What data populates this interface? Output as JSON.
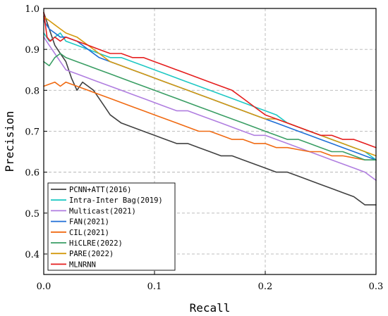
{
  "chart_data": {
    "type": "line",
    "title": "",
    "xlabel": "Recall",
    "ylabel": "Precision",
    "xlim": [
      0.0,
      0.3
    ],
    "ylim": [
      0.35,
      1.0
    ],
    "xticks": [
      0.0,
      0.1,
      0.2,
      0.3
    ],
    "xtick_labels": [
      "0.0",
      "0.1",
      "0.2",
      "0.3"
    ],
    "yticks": [
      0.4,
      0.5,
      0.6,
      0.7,
      0.8,
      0.9,
      1.0
    ],
    "ytick_labels": [
      "0.4",
      "0.5",
      "0.6",
      "0.7",
      "0.8",
      "0.9",
      "1.0"
    ],
    "grid": true,
    "legend_position": "bottom-left",
    "series": [
      {
        "name": "PCNN+ATT(2016)",
        "color": "#404040",
        "x": [
          0.0,
          0.005,
          0.01,
          0.015,
          0.02,
          0.025,
          0.03,
          0.035,
          0.04,
          0.045,
          0.05,
          0.055,
          0.06,
          0.07,
          0.08,
          0.09,
          0.1,
          0.11,
          0.12,
          0.13,
          0.14,
          0.15,
          0.16,
          0.17,
          0.18,
          0.19,
          0.2,
          0.21,
          0.22,
          0.23,
          0.24,
          0.25,
          0.26,
          0.27,
          0.28,
          0.29,
          0.3
        ],
        "y": [
          0.99,
          0.95,
          0.91,
          0.89,
          0.87,
          0.83,
          0.8,
          0.82,
          0.81,
          0.8,
          0.78,
          0.76,
          0.74,
          0.72,
          0.71,
          0.7,
          0.69,
          0.68,
          0.67,
          0.67,
          0.66,
          0.65,
          0.64,
          0.64,
          0.63,
          0.62,
          0.61,
          0.6,
          0.6,
          0.59,
          0.58,
          0.57,
          0.56,
          0.55,
          0.54,
          0.52,
          0.52
        ]
      },
      {
        "name": "Intra-Inter Bag(2019)",
        "color": "#1fc8c4",
        "x": [
          0.0,
          0.005,
          0.01,
          0.015,
          0.02,
          0.03,
          0.04,
          0.05,
          0.06,
          0.07,
          0.08,
          0.09,
          0.1,
          0.11,
          0.12,
          0.13,
          0.14,
          0.15,
          0.16,
          0.17,
          0.18,
          0.19,
          0.2,
          0.21,
          0.22,
          0.23,
          0.24,
          0.25,
          0.26,
          0.27,
          0.28,
          0.29,
          0.3
        ],
        "y": [
          0.94,
          0.92,
          0.93,
          0.94,
          0.92,
          0.91,
          0.9,
          0.89,
          0.88,
          0.88,
          0.87,
          0.86,
          0.85,
          0.84,
          0.83,
          0.82,
          0.81,
          0.8,
          0.79,
          0.78,
          0.77,
          0.76,
          0.75,
          0.74,
          0.72,
          0.71,
          0.7,
          0.69,
          0.68,
          0.67,
          0.66,
          0.65,
          0.63
        ]
      },
      {
        "name": "Multicast(2021)",
        "color": "#b07ee0",
        "x": [
          0.0,
          0.005,
          0.01,
          0.015,
          0.02,
          0.03,
          0.04,
          0.05,
          0.06,
          0.07,
          0.08,
          0.09,
          0.1,
          0.11,
          0.12,
          0.13,
          0.14,
          0.15,
          0.16,
          0.17,
          0.18,
          0.19,
          0.2,
          0.21,
          0.22,
          0.23,
          0.24,
          0.25,
          0.26,
          0.27,
          0.28,
          0.29,
          0.3
        ],
        "y": [
          0.93,
          0.91,
          0.89,
          0.87,
          0.85,
          0.84,
          0.83,
          0.82,
          0.81,
          0.8,
          0.79,
          0.78,
          0.77,
          0.76,
          0.75,
          0.75,
          0.74,
          0.73,
          0.72,
          0.71,
          0.7,
          0.69,
          0.69,
          0.68,
          0.67,
          0.66,
          0.65,
          0.64,
          0.63,
          0.62,
          0.61,
          0.6,
          0.58
        ]
      },
      {
        "name": "FAN(2021)",
        "color": "#1f6fd6",
        "x": [
          0.0,
          0.005,
          0.01,
          0.015,
          0.02,
          0.03,
          0.04,
          0.05,
          0.06,
          0.07,
          0.08,
          0.09,
          0.1,
          0.11,
          0.12,
          0.13,
          0.14,
          0.15,
          0.16,
          0.17,
          0.18,
          0.19,
          0.2,
          0.21,
          0.22,
          0.23,
          0.24,
          0.25,
          0.26,
          0.27,
          0.28,
          0.29,
          0.3
        ],
        "y": [
          0.97,
          0.95,
          0.94,
          0.93,
          0.93,
          0.92,
          0.9,
          0.88,
          0.87,
          0.86,
          0.85,
          0.84,
          0.83,
          0.82,
          0.81,
          0.8,
          0.79,
          0.78,
          0.77,
          0.76,
          0.75,
          0.74,
          0.73,
          0.72,
          0.71,
          0.7,
          0.69,
          0.68,
          0.67,
          0.66,
          0.65,
          0.64,
          0.63
        ]
      },
      {
        "name": "CIL(2021)",
        "color": "#f06a12",
        "x": [
          0.0,
          0.005,
          0.01,
          0.015,
          0.02,
          0.03,
          0.04,
          0.05,
          0.06,
          0.07,
          0.08,
          0.09,
          0.1,
          0.11,
          0.12,
          0.13,
          0.14,
          0.15,
          0.16,
          0.17,
          0.18,
          0.19,
          0.2,
          0.21,
          0.22,
          0.23,
          0.24,
          0.25,
          0.26,
          0.27,
          0.28,
          0.29,
          0.3
        ],
        "y": [
          0.81,
          0.815,
          0.82,
          0.81,
          0.82,
          0.81,
          0.8,
          0.79,
          0.78,
          0.77,
          0.76,
          0.75,
          0.74,
          0.73,
          0.72,
          0.71,
          0.7,
          0.7,
          0.69,
          0.68,
          0.68,
          0.67,
          0.67,
          0.66,
          0.66,
          0.655,
          0.65,
          0.65,
          0.64,
          0.64,
          0.635,
          0.63,
          0.63
        ]
      },
      {
        "name": "HiCLRE(2022)",
        "color": "#3a9e64",
        "x": [
          0.0,
          0.005,
          0.01,
          0.015,
          0.02,
          0.03,
          0.04,
          0.05,
          0.06,
          0.07,
          0.08,
          0.09,
          0.1,
          0.11,
          0.12,
          0.13,
          0.14,
          0.15,
          0.16,
          0.17,
          0.18,
          0.19,
          0.2,
          0.21,
          0.22,
          0.23,
          0.24,
          0.25,
          0.26,
          0.27,
          0.28,
          0.29,
          0.3
        ],
        "y": [
          0.87,
          0.86,
          0.88,
          0.89,
          0.88,
          0.87,
          0.86,
          0.85,
          0.84,
          0.83,
          0.82,
          0.81,
          0.8,
          0.79,
          0.78,
          0.77,
          0.76,
          0.75,
          0.74,
          0.73,
          0.72,
          0.71,
          0.7,
          0.69,
          0.68,
          0.68,
          0.67,
          0.66,
          0.65,
          0.65,
          0.64,
          0.63,
          0.63
        ]
      },
      {
        "name": "PARE(2022)",
        "color": "#d49a0f",
        "x": [
          0.0,
          0.005,
          0.01,
          0.015,
          0.02,
          0.03,
          0.04,
          0.05,
          0.06,
          0.07,
          0.08,
          0.09,
          0.1,
          0.11,
          0.12,
          0.13,
          0.14,
          0.15,
          0.16,
          0.17,
          0.18,
          0.19,
          0.2,
          0.21,
          0.22,
          0.23,
          0.24,
          0.25,
          0.26,
          0.27,
          0.28,
          0.29,
          0.3
        ],
        "y": [
          0.98,
          0.97,
          0.96,
          0.95,
          0.94,
          0.93,
          0.91,
          0.89,
          0.87,
          0.86,
          0.85,
          0.84,
          0.83,
          0.82,
          0.81,
          0.8,
          0.79,
          0.78,
          0.77,
          0.76,
          0.75,
          0.74,
          0.73,
          0.73,
          0.72,
          0.71,
          0.7,
          0.69,
          0.68,
          0.67,
          0.66,
          0.65,
          0.64
        ]
      },
      {
        "name": "MLNRNN",
        "color": "#e51e1e",
        "x": [
          0.0,
          0.003,
          0.006,
          0.01,
          0.015,
          0.02,
          0.03,
          0.04,
          0.05,
          0.06,
          0.07,
          0.08,
          0.09,
          0.1,
          0.11,
          0.12,
          0.13,
          0.14,
          0.15,
          0.16,
          0.17,
          0.18,
          0.19,
          0.2,
          0.21,
          0.22,
          0.23,
          0.24,
          0.25,
          0.26,
          0.27,
          0.28,
          0.29,
          0.3
        ],
        "y": [
          0.99,
          0.93,
          0.92,
          0.93,
          0.92,
          0.93,
          0.92,
          0.91,
          0.9,
          0.89,
          0.89,
          0.88,
          0.88,
          0.87,
          0.86,
          0.85,
          0.84,
          0.83,
          0.82,
          0.81,
          0.8,
          0.78,
          0.76,
          0.74,
          0.73,
          0.72,
          0.71,
          0.7,
          0.69,
          0.69,
          0.68,
          0.68,
          0.67,
          0.66
        ]
      }
    ]
  }
}
